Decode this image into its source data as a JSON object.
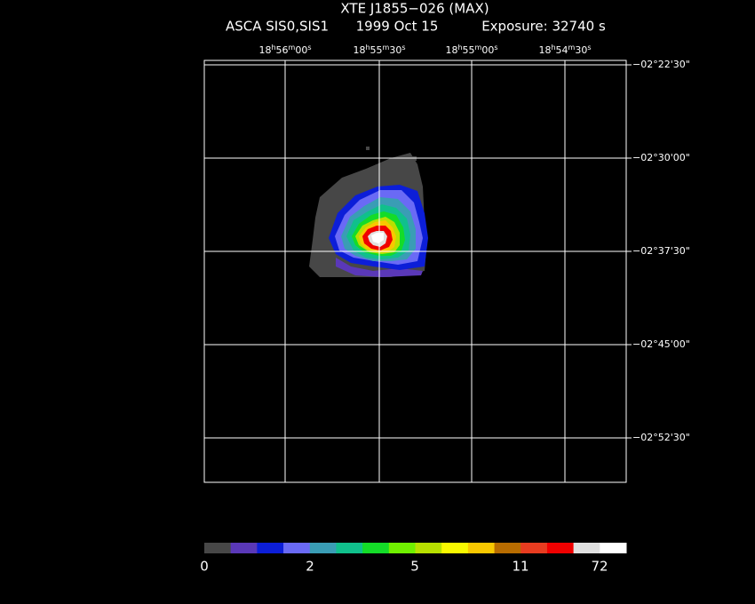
{
  "header": {
    "title": "XTE J1855−026 (MAX)",
    "instrument": "ASCA SIS0,SIS1",
    "date": "1999 Oct 15",
    "exposure": "Exposure: 32740 s"
  },
  "ra_labels": [
    "18h56m00s",
    "18h55m30s",
    "18h55m00s",
    "18h54m30s"
  ],
  "dec_labels": [
    "−02°22'30\"",
    "−02°30'00\"",
    "−02°37'30\"",
    "−02°45'00\"",
    "−02°52'30\""
  ],
  "colorbar": {
    "labels": [
      "0",
      "2",
      "5",
      "11",
      "72"
    ],
    "colors": [
      "#474747",
      "#5a38b8",
      "#0c1ed8",
      "#6a6af5",
      "#3a9db5",
      "#10c08c",
      "#14dc28",
      "#70f000",
      "#b8e000",
      "#f8f800",
      "#f8c800",
      "#b86c00",
      "#e83c20",
      "#f00000",
      "#e0e0e0",
      "#ffffff"
    ]
  }
}
